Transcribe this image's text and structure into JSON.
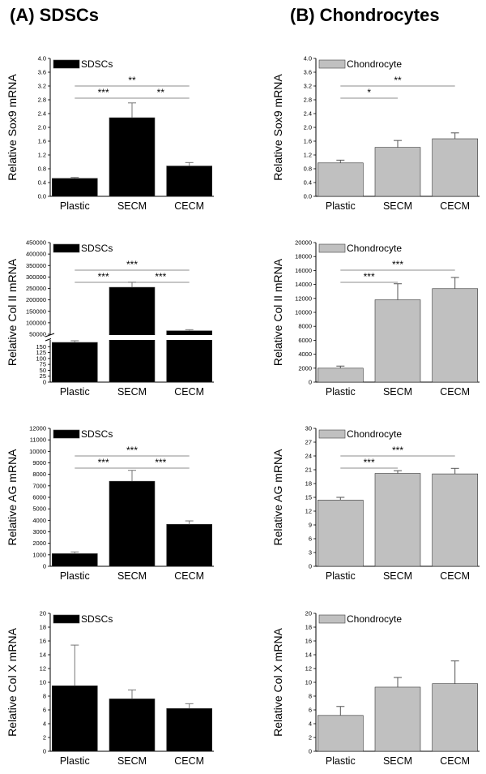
{
  "panels": {
    "a_title": "(A) SDSCs",
    "b_title": "(B) Chondrocytes"
  },
  "chart_data": [
    {
      "id": "a-sox9",
      "type": "bar",
      "panel": "A",
      "categories": [
        "Plastic",
        "SECM",
        "CECM"
      ],
      "series": [
        {
          "name": "SDSCs",
          "values": [
            0.52,
            2.28,
            0.88
          ],
          "errors": [
            0.03,
            0.43,
            0.1
          ]
        }
      ],
      "ylabel": "Relative Sox9 mRNA",
      "ylim": [
        0,
        4.0
      ],
      "yticks": [
        "0.0",
        "0.4",
        "0.8",
        "1.2",
        "1.6",
        "2.0",
        "2.4",
        "2.8",
        "3.2",
        "3.6",
        "4.0"
      ],
      "significance": [
        {
          "from": "Plastic",
          "to": "SECM",
          "label": "***"
        },
        {
          "from": "SECM",
          "to": "CECM",
          "label": "**"
        },
        {
          "from": "Plastic",
          "to": "CECM",
          "label": "**"
        }
      ],
      "legend_position": "top-left",
      "bar_color": "#000000"
    },
    {
      "id": "a-col2",
      "type": "bar",
      "panel": "A",
      "categories": [
        "Plastic",
        "SECM",
        "CECM"
      ],
      "series": [
        {
          "name": "SDSCs",
          "values": [
            168,
            255000,
            65000
          ],
          "errors": [
            22,
            22000,
            5000
          ]
        }
      ],
      "ylabel": "Relative Col II mRNA",
      "axis_break": true,
      "ylim_lower": [
        0,
        175
      ],
      "ylim_upper": [
        50000,
        450000
      ],
      "yticks_lower": [
        "0",
        "25",
        "50",
        "75",
        "100",
        "125",
        "150"
      ],
      "yticks_upper": [
        "50000",
        "100000",
        "150000",
        "200000",
        "250000",
        "300000",
        "350000",
        "400000",
        "450000"
      ],
      "significance": [
        {
          "from": "Plastic",
          "to": "SECM",
          "label": "***"
        },
        {
          "from": "SECM",
          "to": "CECM",
          "label": "***"
        },
        {
          "from": "Plastic",
          "to": "CECM",
          "label": "***"
        }
      ],
      "legend_position": "top-left",
      "bar_color": "#000000"
    },
    {
      "id": "a-ag",
      "type": "bar",
      "panel": "A",
      "categories": [
        "Plastic",
        "SECM",
        "CECM"
      ],
      "series": [
        {
          "name": "SDSCs",
          "values": [
            1100,
            7400,
            3650
          ],
          "errors": [
            150,
            950,
            300
          ]
        }
      ],
      "ylabel": "Relative AG mRNA",
      "ylim": [
        0,
        12000
      ],
      "yticks": [
        "0",
        "1000",
        "2000",
        "3000",
        "4000",
        "5000",
        "6000",
        "7000",
        "8000",
        "9000",
        "10000",
        "11000",
        "12000"
      ],
      "significance": [
        {
          "from": "Plastic",
          "to": "SECM",
          "label": "***"
        },
        {
          "from": "SECM",
          "to": "CECM",
          "label": "***"
        },
        {
          "from": "Plastic",
          "to": "CECM",
          "label": "***"
        }
      ],
      "legend_position": "top-left",
      "bar_color": "#000000"
    },
    {
      "id": "a-col10",
      "type": "bar",
      "panel": "A",
      "categories": [
        "Plastic",
        "SECM",
        "CECM"
      ],
      "series": [
        {
          "name": "SDSCs",
          "values": [
            9.5,
            7.6,
            6.2
          ],
          "errors": [
            5.9,
            1.3,
            0.7
          ]
        }
      ],
      "ylabel": "Relative Col X mRNA",
      "ylim": [
        0,
        20
      ],
      "yticks": [
        "0",
        "2",
        "4",
        "6",
        "8",
        "10",
        "12",
        "14",
        "16",
        "18",
        "20"
      ],
      "significance": [],
      "legend_position": "top-left",
      "bar_color": "#000000"
    },
    {
      "id": "b-sox9",
      "type": "bar",
      "panel": "B",
      "categories": [
        "Plastic",
        "SECM",
        "CECM"
      ],
      "series": [
        {
          "name": "Chondrocyte",
          "values": [
            0.97,
            1.42,
            1.67
          ],
          "errors": [
            0.08,
            0.2,
            0.17
          ]
        }
      ],
      "ylabel": "Relative Sox9 mRNA",
      "ylim": [
        0,
        4.0
      ],
      "yticks": [
        "0.0",
        "0.4",
        "0.8",
        "1.2",
        "1.6",
        "2.0",
        "2.4",
        "2.8",
        "3.2",
        "3.6",
        "4.0"
      ],
      "significance": [
        {
          "from": "Plastic",
          "to": "SECM",
          "label": "*"
        },
        {
          "from": "Plastic",
          "to": "CECM",
          "label": "**"
        }
      ],
      "legend_position": "top-left",
      "bar_color": "#c0c0c0"
    },
    {
      "id": "b-col2",
      "type": "bar",
      "panel": "B",
      "categories": [
        "Plastic",
        "SECM",
        "CECM"
      ],
      "series": [
        {
          "name": "Chondrocyte",
          "values": [
            2000,
            11800,
            13400
          ],
          "errors": [
            300,
            2300,
            1600
          ]
        }
      ],
      "ylabel": "Relative Col II mRNA",
      "ylim": [
        0,
        20000
      ],
      "yticks": [
        "0",
        "2000",
        "4000",
        "6000",
        "8000",
        "10000",
        "12000",
        "14000",
        "16000",
        "18000",
        "20000"
      ],
      "significance": [
        {
          "from": "Plastic",
          "to": "SECM",
          "label": "***"
        },
        {
          "from": "Plastic",
          "to": "CECM",
          "label": "***"
        }
      ],
      "legend_position": "top-left",
      "bar_color": "#c0c0c0"
    },
    {
      "id": "b-ag",
      "type": "bar",
      "panel": "B",
      "categories": [
        "Plastic",
        "SECM",
        "CECM"
      ],
      "series": [
        {
          "name": "Chondrocyte",
          "values": [
            14.4,
            20.2,
            20.1
          ],
          "errors": [
            0.6,
            0.6,
            1.2
          ]
        }
      ],
      "ylabel": "Relative AG mRNA",
      "ylim": [
        0,
        30
      ],
      "yticks": [
        "0",
        "3",
        "6",
        "9",
        "12",
        "15",
        "18",
        "21",
        "24",
        "27",
        "30"
      ],
      "significance": [
        {
          "from": "Plastic",
          "to": "SECM",
          "label": "***"
        },
        {
          "from": "Plastic",
          "to": "CECM",
          "label": "***"
        }
      ],
      "legend_position": "top-left",
      "bar_color": "#c0c0c0"
    },
    {
      "id": "b-col10",
      "type": "bar",
      "panel": "B",
      "categories": [
        "Plastic",
        "SECM",
        "CECM"
      ],
      "series": [
        {
          "name": "Chondrocyte",
          "values": [
            5.2,
            9.3,
            9.8
          ],
          "errors": [
            1.3,
            1.4,
            3.3
          ]
        }
      ],
      "ylabel": "Relative Col X mRNA",
      "ylim": [
        0,
        20
      ],
      "yticks": [
        "0",
        "2",
        "4",
        "6",
        "8",
        "10",
        "12",
        "14",
        "16",
        "18",
        "20"
      ],
      "significance": [],
      "legend_position": "top-left",
      "bar_color": "#c0c0c0"
    }
  ]
}
